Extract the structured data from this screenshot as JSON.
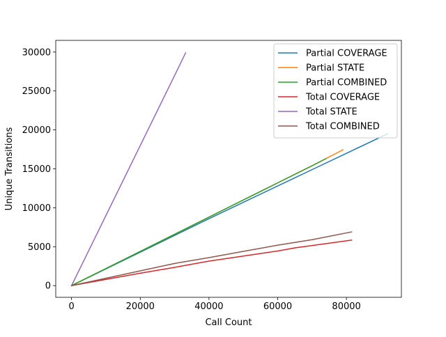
{
  "chart_data": {
    "type": "line",
    "title": "",
    "xlabel": "Call Count",
    "ylabel": "Unique Transitions",
    "xlim": [
      -4600,
      96000
    ],
    "ylim": [
      -1500,
      31500
    ],
    "xticks": [
      0,
      20000,
      40000,
      60000,
      80000
    ],
    "yticks": [
      0,
      5000,
      10000,
      15000,
      20000,
      25000,
      30000
    ],
    "xtick_labels": [
      "0",
      "20000",
      "40000",
      "60000",
      "80000"
    ],
    "ytick_labels": [
      "0",
      "5000",
      "10000",
      "15000",
      "20000",
      "25000",
      "30000"
    ],
    "grid": false,
    "legend_position": "top-right",
    "series": [
      {
        "name": "Partial COVERAGE",
        "color": "#1f77b4",
        "x": [
          0,
          10000,
          20000,
          30000,
          40000,
          50000,
          60000,
          70000,
          80000,
          92000
        ],
        "y": [
          0,
          2150,
          4300,
          6450,
          8600,
          10700,
          12800,
          14900,
          17000,
          19500
        ]
      },
      {
        "name": "Partial STATE",
        "color": "#ff7f0e",
        "x": [
          0,
          10000,
          20000,
          30000,
          40000,
          50000,
          60000,
          70000,
          79000
        ],
        "y": [
          0,
          2200,
          4400,
          6600,
          8800,
          11000,
          13200,
          15400,
          17450
        ]
      },
      {
        "name": "Partial COMBINED",
        "color": "#2ca02c",
        "x": [
          0,
          10000,
          20000,
          30000,
          40000,
          50000,
          60000,
          70000,
          74000
        ],
        "y": [
          0,
          2200,
          4400,
          6600,
          8800,
          11000,
          13200,
          15400,
          16300
        ]
      },
      {
        "name": "Total COVERAGE",
        "color": "#d62728",
        "x": [
          0,
          10000,
          20000,
          30000,
          40000,
          50000,
          60000,
          65000,
          70000,
          75000,
          81500
        ],
        "y": [
          0,
          800,
          1600,
          2350,
          3150,
          3800,
          4450,
          4850,
          5150,
          5450,
          5850
        ]
      },
      {
        "name": "Total STATE",
        "color": "#9467bd",
        "x": [
          0,
          10000,
          20000,
          30000,
          33200
        ],
        "y": [
          0,
          9000,
          18000,
          27000,
          29900
        ]
      },
      {
        "name": "Total COMBINED",
        "color": "#8c564b",
        "x": [
          0,
          10000,
          20000,
          30000,
          40000,
          50000,
          60000,
          70000,
          81500
        ],
        "y": [
          0,
          950,
          1900,
          2850,
          3600,
          4400,
          5200,
          5900,
          6900
        ]
      }
    ]
  }
}
